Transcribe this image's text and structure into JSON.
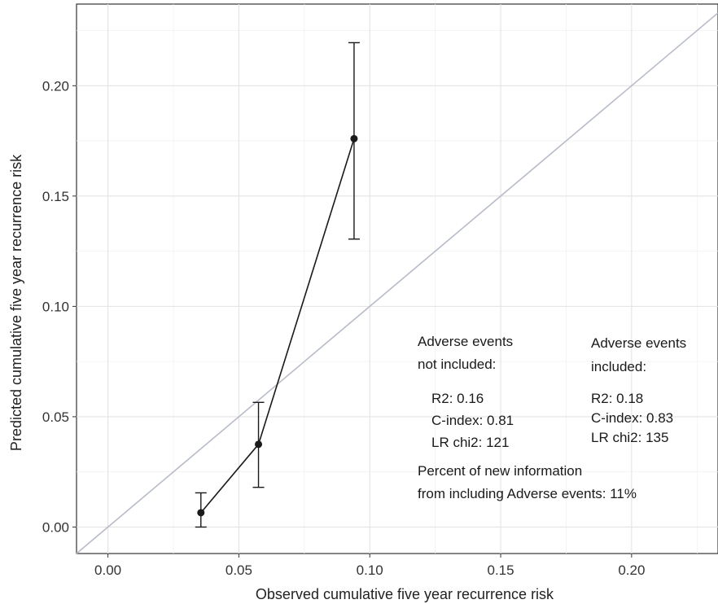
{
  "chart_data": {
    "type": "scatter",
    "title": "",
    "xlabel": "Observed cumulative five year recurrence risk",
    "ylabel": "Predicted cumulative five year recurrence risk",
    "xlim": [
      -0.012,
      0.233
    ],
    "ylim": [
      -0.012,
      0.237
    ],
    "grid": true,
    "x_ticks": [
      0.0,
      0.05,
      0.1,
      0.15,
      0.2
    ],
    "x_tick_labels": [
      "0.00",
      "0.05",
      "0.10",
      "0.15",
      "0.20"
    ],
    "y_ticks": [
      0.0,
      0.05,
      0.1,
      0.15,
      0.2
    ],
    "y_tick_labels": [
      "0.00",
      "0.05",
      "0.10",
      "0.15",
      "0.20"
    ],
    "reference_line": {
      "slope": 1,
      "intercept": 0,
      "color": "#b8bcc8"
    },
    "series": [
      {
        "x": [
          0.0355,
          0.0575,
          0.094
        ],
        "y": [
          0.0065,
          0.0375,
          0.176
        ],
        "y_lower": [
          0.0,
          0.018,
          0.1305
        ],
        "y_upper": [
          0.0155,
          0.0565,
          0.2195
        ],
        "color": "#1a1a1a"
      }
    ],
    "annotations": {
      "col1_heading": [
        "Adverse events",
        "not included:"
      ],
      "col2_heading": [
        "Adverse events",
        "included:"
      ],
      "col1_stats": [
        "R2: 0.16",
        "C-index: 0.81",
        "LR chi2: 121"
      ],
      "col2_stats": [
        "R2: 0.18",
        "C-index: 0.83",
        "LR chi2: 135"
      ],
      "footer": [
        "Percent of new information",
        "from including Adverse events: 11%"
      ]
    }
  }
}
